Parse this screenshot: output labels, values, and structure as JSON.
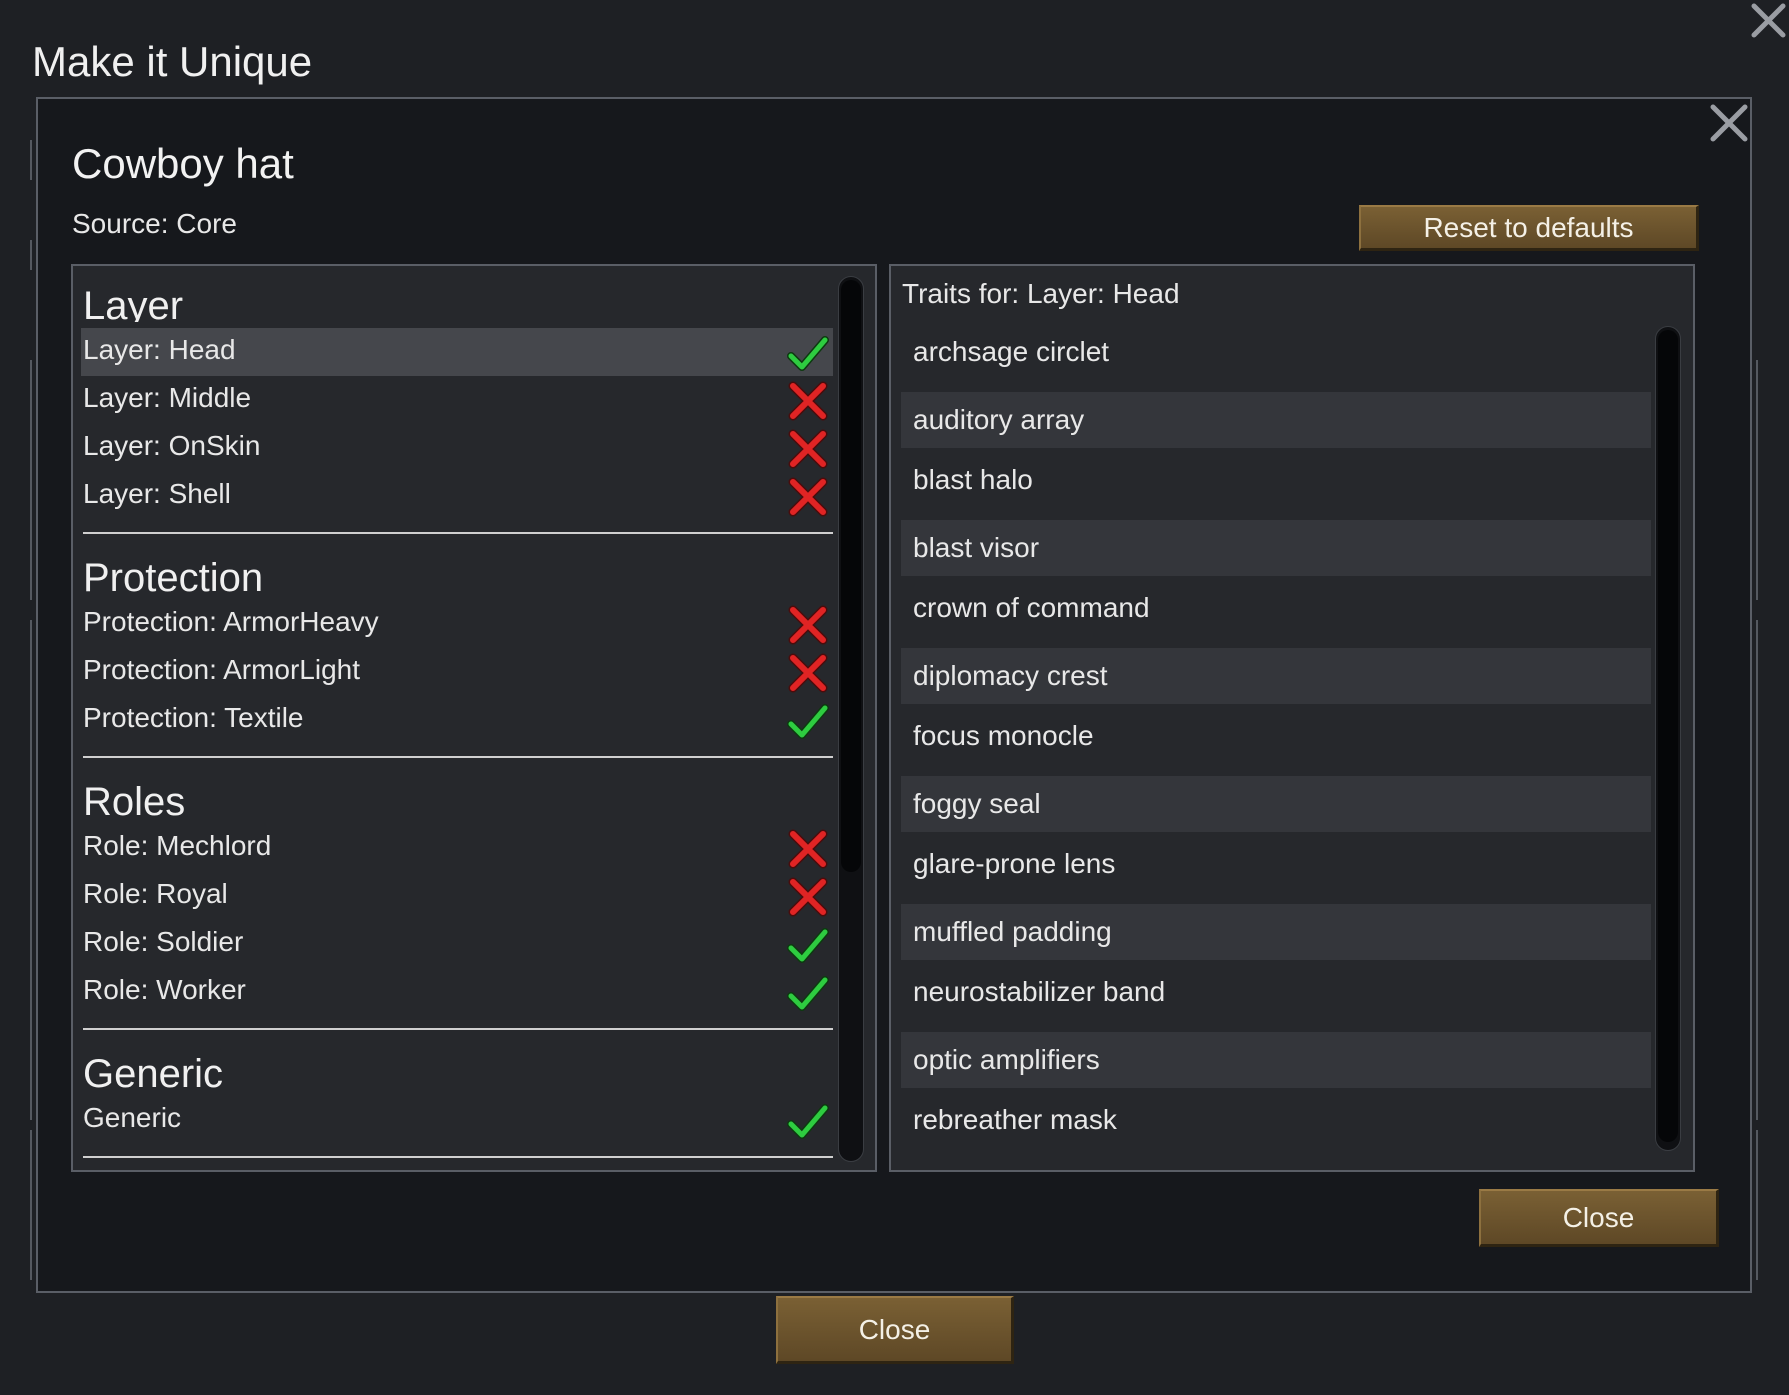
{
  "window": {
    "title": "Make it Unique"
  },
  "dialog": {
    "item_title": "Cowboy hat",
    "source": "Source: Core",
    "reset_label": "Reset to defaults",
    "close_label": "Close"
  },
  "outer": {
    "close_label": "Close"
  },
  "groups": [
    {
      "title": "Layer",
      "items": [
        {
          "label": "Layer: Head",
          "state": "allowed",
          "selected": true
        },
        {
          "label": "Layer: Middle",
          "state": "disallowed"
        },
        {
          "label": "Layer: OnSkin",
          "state": "disallowed"
        },
        {
          "label": "Layer: Shell",
          "state": "disallowed"
        }
      ]
    },
    {
      "title": "Protection",
      "items": [
        {
          "label": "Protection: ArmorHeavy",
          "state": "disallowed"
        },
        {
          "label": "Protection: ArmorLight",
          "state": "disallowed"
        },
        {
          "label": "Protection: Textile",
          "state": "allowed"
        }
      ]
    },
    {
      "title": "Roles",
      "items": [
        {
          "label": "Role: Mechlord",
          "state": "disallowed"
        },
        {
          "label": "Role: Royal",
          "state": "disallowed"
        },
        {
          "label": "Role: Soldier",
          "state": "allowed"
        },
        {
          "label": "Role: Worker",
          "state": "allowed"
        }
      ]
    },
    {
      "title": "Generic",
      "items": [
        {
          "label": "Generic",
          "state": "allowed"
        }
      ]
    }
  ],
  "traits": {
    "header": "Traits for: Layer: Head",
    "items": [
      "archsage circlet",
      "auditory array",
      "blast halo",
      "blast visor",
      "crown of command",
      "diplomacy crest",
      "focus monocle",
      "foggy seal",
      "glare-prone lens",
      "muffled padding",
      "neurostabilizer band",
      "optic amplifiers",
      "rebreather mask"
    ]
  },
  "icons": {
    "allowed": "checkmark-icon",
    "disallowed": "cross-icon",
    "close": "close-icon"
  },
  "colors": {
    "allowed": "#2ecc40",
    "disallowed": "#e02424",
    "button": "#6b5330"
  }
}
